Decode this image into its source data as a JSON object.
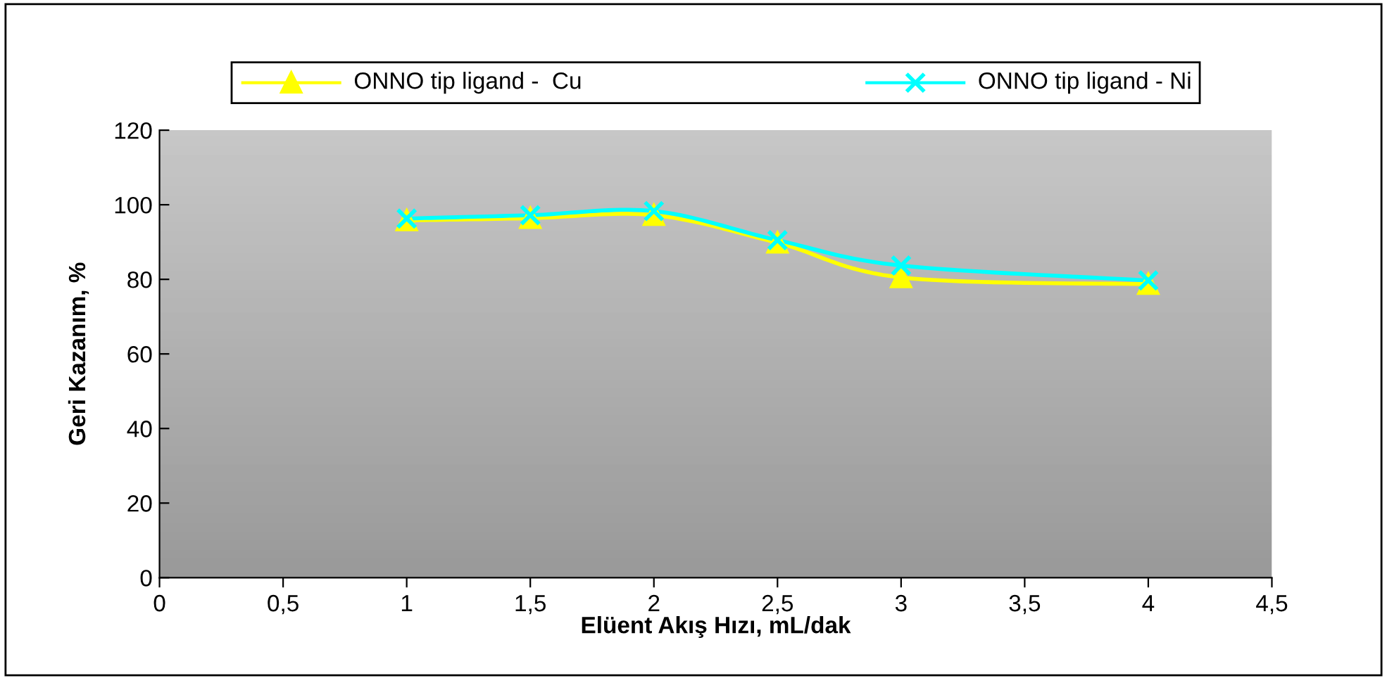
{
  "chart_data": {
    "type": "line",
    "xlabel": "Elüent Akış Hızı, mL/dak",
    "ylabel": "Geri Kazanım, %",
    "series": [
      {
        "name": "ONNO tip ligand -  Cu",
        "color": "#ffff00",
        "marker": "triangle",
        "x": [
          1,
          1.5,
          2,
          2.5,
          3,
          4
        ],
        "values": [
          95.8,
          96.4,
          97.2,
          89.8,
          80.5,
          78.7
        ]
      },
      {
        "name": "ONNO tip ligand - Ni",
        "color": "#00ffff",
        "marker": "cross",
        "x": [
          1,
          1.5,
          2,
          2.5,
          3,
          4
        ],
        "values": [
          96.3,
          97.2,
          98.3,
          90.5,
          83.7,
          79.7
        ]
      }
    ],
    "xlim": [
      0,
      4.5
    ],
    "xticks": [
      0,
      {
        "value": 0.5,
        "label": "0,5"
      },
      1,
      {
        "value": 1.5,
        "label": "1,5"
      },
      2,
      {
        "value": 2.5,
        "label": "2,5"
      },
      3,
      {
        "value": 3.5,
        "label": "3,5"
      },
      4,
      {
        "value": 4.5,
        "label": "4,5"
      }
    ],
    "ylim": [
      0,
      120
    ],
    "yticks": [
      0,
      20,
      40,
      60,
      80,
      100,
      120
    ],
    "grid": false,
    "legend": "top"
  }
}
